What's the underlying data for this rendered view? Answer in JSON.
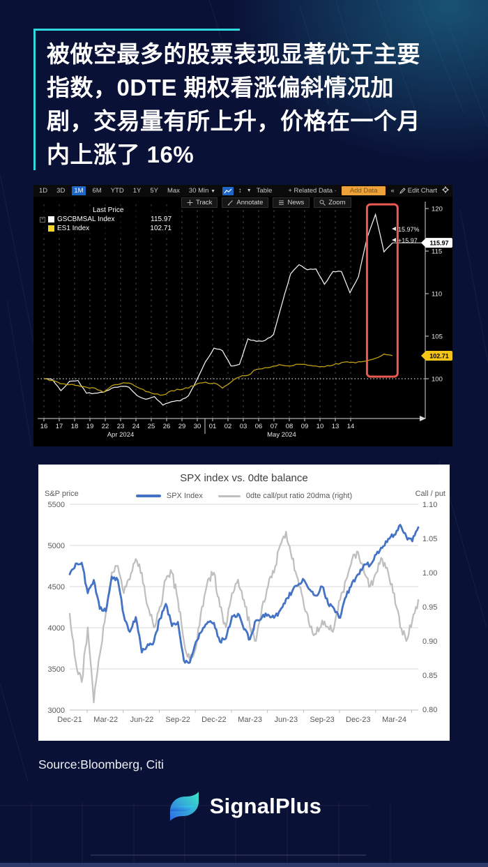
{
  "page": {
    "bg": "#0A1137",
    "accent": "#2FD8DC",
    "footer_strip": "#2C3A69"
  },
  "header": {
    "lines": [
      "被做空最多的股票表现显著优于主要",
      "指数，0DTE 期权看涨偏斜情况加",
      "剧，交易量有所上升，价格在一个月",
      "内上涨了 16%"
    ]
  },
  "bloomberg": {
    "ranges": [
      "1D",
      "3D",
      "1M",
      "6M",
      "YTD",
      "1Y",
      "5Y",
      "Max"
    ],
    "active_range": "1M",
    "interval": "30 Min",
    "table_label": "Table",
    "related_data_label": "+ Related Data",
    "add_data_label": "Add Data",
    "collapse_label": "«",
    "edit_chart_label": "Edit Chart",
    "tools": [
      {
        "icon": "crosshair",
        "label": "Track"
      },
      {
        "icon": "pencil",
        "label": "Annotate"
      },
      {
        "icon": "news",
        "label": "News"
      },
      {
        "icon": "magnifier",
        "label": "Zoom"
      }
    ],
    "legend_title": "Last Price",
    "annotation_pct": "15.97%",
    "annotation_abs": "+15.97",
    "highlight_color": "#ED5A52"
  },
  "chart_data": [
    {
      "type": "line",
      "title": "GSCBMSAL Index vs ES1 Index (1M, 30 Min, normalized)",
      "x_tick_labels": [
        "16",
        "17",
        "18",
        "19",
        "22",
        "23",
        "24",
        "25",
        "26",
        "29",
        "30",
        "01",
        "02",
        "03",
        "06",
        "07",
        "08",
        "09",
        "10",
        "13",
        "14"
      ],
      "x_month_labels": [
        {
          "label": "Apr 2024",
          "day_index": 5
        },
        {
          "label": "May 2024",
          "day_index": 15.5
        }
      ],
      "month_separator_index": 10.5,
      "ylim": [
        95,
        120.8
      ],
      "yticks": [
        120,
        115,
        110,
        105,
        100
      ],
      "baseline": 100,
      "series": [
        {
          "name": "GSCBMSAL Index",
          "color": "#F2F2F2",
          "swatch": "#FFFFFF",
          "last_price": "115.97",
          "values": [
            100.0,
            99.9,
            98.6,
            99.7,
            99.8,
            98.3,
            98.3,
            98.4,
            98.9,
            99.1,
            99.0,
            98.0,
            97.6,
            97.9,
            96.9,
            97.3,
            97.4,
            98.0,
            99.9,
            102.0,
            103.6,
            103.3,
            101.5,
            101.7,
            104.7,
            104.4,
            104.5,
            105.2,
            108.8,
            112.3,
            113.4,
            112.8,
            112.9,
            111.1,
            112.6,
            112.6,
            110.1,
            112.0,
            116.5,
            119.3,
            114.9,
            115.97
          ]
        },
        {
          "name": "ES1 Index",
          "color": "#C7A40E",
          "swatch": "#F5D327",
          "last_price": "102.71",
          "values": [
            100.0,
            99.8,
            99.4,
            99.3,
            99.2,
            99.0,
            98.9,
            98.4,
            99.2,
            99.4,
            99.5,
            99.0,
            98.5,
            98.2,
            98.1,
            98.6,
            98.7,
            98.9,
            99.4,
            99.6,
            99.5,
            98.9,
            99.6,
            100.2,
            100.4,
            101.1,
            101.3,
            101.5,
            101.6,
            101.5,
            101.7,
            101.6,
            101.5,
            101.4,
            101.6,
            101.9,
            101.9,
            102.0,
            102.1,
            102.4,
            102.9,
            102.71
          ]
        }
      ],
      "badge_colors": [
        "#FFFFFF",
        "#F5C518"
      ],
      "highlight_box_days": [
        19.0,
        20.8
      ],
      "legend_position": "top-left",
      "grid": "vertical-dashed"
    },
    {
      "type": "line",
      "title": "SPX index vs. 0dte balance",
      "ylabel_left": "S&P price",
      "ylabel_right": "Call / put",
      "x_tick_labels": [
        "Dec-21",
        "Mar-22",
        "Jun-22",
        "Sep-22",
        "Dec-22",
        "Mar-23",
        "Jun-23",
        "Sep-23",
        "Dec-23",
        "Mar-24"
      ],
      "x_tick_months": [
        0,
        3,
        6,
        9,
        12,
        15,
        18,
        21,
        24,
        27
      ],
      "ylim_left": [
        3000,
        5500
      ],
      "ylim_right": [
        0.8,
        1.1
      ],
      "yticks_left": [
        5500,
        5000,
        4500,
        4000,
        3500,
        3000
      ],
      "yticks_right": [
        "1.10",
        "1.05",
        "1.00",
        "0.95",
        "0.90",
        "0.85",
        "0.80"
      ],
      "legend_position": "top-center",
      "grid": "horizontal",
      "series": [
        {
          "name": "SPX Index",
          "axis": "left",
          "color": "#4472C4",
          "values": [
            4650,
            4780,
            4790,
            4420,
            4580,
            4230,
            4200,
            4620,
            4580,
            4150,
            3950,
            4130,
            3700,
            3800,
            3830,
            4110,
            4290,
            4020,
            4070,
            3600,
            3580,
            3830,
            3960,
            4070,
            4060,
            3830,
            3870,
            4140,
            4170,
            3980,
            3860,
            4090,
            4130,
            4160,
            4120,
            4210,
            4350,
            4440,
            4520,
            4580,
            4460,
            4390,
            4500,
            4290,
            4230,
            4120,
            4380,
            4550,
            4650,
            4770,
            4760,
            4890,
            4970,
            5080,
            5130,
            5250,
            5110,
            5050,
            5220
          ]
        },
        {
          "name": "0dte call/put ratio 20dma (right)",
          "axis": "right",
          "color": "#BFBFBF",
          "values": [
            0.94,
            0.87,
            0.84,
            0.92,
            0.81,
            0.88,
            0.94,
            1.0,
            1.01,
            0.97,
            0.99,
            1.02,
            1.0,
            0.95,
            0.92,
            0.95,
            0.99,
            1.0,
            0.96,
            0.9,
            0.87,
            0.89,
            0.95,
            0.99,
            1.0,
            0.95,
            0.92,
            0.97,
            0.99,
            0.96,
            0.92,
            0.9,
            0.95,
            0.98,
            1.0,
            1.04,
            1.06,
            1.02,
            0.99,
            0.95,
            0.92,
            0.91,
            0.93,
            0.92,
            0.92,
            0.96,
            0.99,
            1.02,
            1.03,
            1.0,
            0.98,
            1.0,
            1.02,
            1.0,
            0.97,
            0.92,
            0.9,
            0.93,
            0.96
          ]
        }
      ]
    }
  ],
  "source": "Source:Bloomberg, Citi",
  "logo": {
    "text": "SignalPlus"
  }
}
